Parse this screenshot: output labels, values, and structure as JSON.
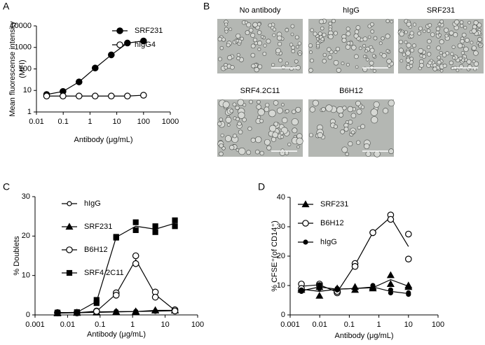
{
  "panel_labels": [
    "A",
    "B",
    "C",
    "D"
  ],
  "micrographs": [
    "No antibody",
    "hIgG",
    "SRF231",
    "SRF4.2C11",
    "B6H12"
  ],
  "chart_data": [
    {
      "type": "line",
      "ylabel": [
        "Mean fluorescense intensity",
        "(MFI)"
      ],
      "xlabel": "Antibody (μg/mL)",
      "x": [
        0.024,
        0.098,
        0.39,
        1.56,
        6.25,
        25,
        100
      ],
      "xlim": [
        0.01,
        1000
      ],
      "xticks": [
        0.01,
        0.1,
        1,
        10,
        100,
        1000
      ],
      "ylim": [
        1,
        10000
      ],
      "yticks": [
        1,
        10,
        100,
        1000,
        10000
      ],
      "xlog": true,
      "ylog": true,
      "series": [
        {
          "name": "SRF231",
          "color": "#000000",
          "marker": "filled-circle",
          "values": [
            6.5,
            9,
            25,
            110,
            450,
            1600,
            2000
          ]
        },
        {
          "name": "hIgG4",
          "color": "#000000",
          "marker": "open-circle",
          "values": [
            5.5,
            5.5,
            5.5,
            5.5,
            5.5,
            5.5,
            6
          ]
        }
      ]
    },
    {
      "type": "line",
      "ylabel": [
        "% Doublets"
      ],
      "xlabel": "Antibody (μg/mL)",
      "x": [
        0.0049,
        0.0195,
        0.078,
        0.3125,
        1.25,
        5,
        20
      ],
      "xlim": [
        0.001,
        100
      ],
      "xticks": [
        0.001,
        0.01,
        0.1,
        1,
        10,
        100
      ],
      "ylim": [
        0,
        30
      ],
      "yticks": [
        0,
        10,
        20,
        30
      ],
      "xlog": true,
      "ylog": false,
      "series": [
        {
          "name": "hIgG",
          "color": "#000000",
          "marker": "small-open-circle",
          "values": [
            0.5,
            0.6,
            0.8,
            0.9,
            0.9,
            1.0,
            1.0
          ],
          "replicate_values": [
            0.6,
            0.5,
            0.7,
            0.8,
            0.8,
            0.9,
            1.1
          ]
        },
        {
          "name": "SRF231",
          "color": "#000000",
          "marker": "triangle",
          "values": [
            0.4,
            0.5,
            0.6,
            0.8,
            0.8,
            1.1,
            1.2
          ],
          "replicate_values": [
            0.5,
            0.6,
            0.7,
            0.7,
            0.9,
            1.2,
            1.1
          ]
        },
        {
          "name": "B6H12",
          "color": "#000000",
          "marker": "open-circle",
          "values": [
            0.5,
            0.6,
            1.0,
            5.6,
            15,
            5.8,
            1.3
          ],
          "replicate_values": [
            0.6,
            0.5,
            0.9,
            5.0,
            13,
            4.5,
            1.0
          ]
        },
        {
          "name": "SRF4.2C11",
          "color": "#000000",
          "marker": "square",
          "values": [
            0.6,
            0.6,
            3.8,
            19.8,
            23.5,
            22.5,
            24
          ],
          "replicate_values": [
            0.5,
            0.7,
            3.0,
            19.6,
            21.5,
            21,
            22.5
          ]
        }
      ]
    },
    {
      "type": "line",
      "ylabel": [
        "% CFSE⁺(of CD14⁺)"
      ],
      "xlabel": "Antibody (μg/mL)",
      "x": [
        0.0024,
        0.0098,
        0.039,
        0.156,
        0.625,
        2.5,
        10
      ],
      "xlim": [
        0.001,
        100
      ],
      "xticks": [
        0.001,
        0.01,
        0.1,
        1,
        10,
        100
      ],
      "ylim": [
        0,
        40
      ],
      "yticks": [
        0,
        10,
        20,
        30,
        40
      ],
      "xlog": true,
      "ylog": false,
      "series": [
        {
          "name": "SRF231",
          "color": "#000000",
          "marker": "triangle",
          "values": [
            8.5,
            6.5,
            8.5,
            8.5,
            9,
            13.5,
            10
          ],
          "replicate_values": [
            9,
            9.5,
            9,
            9.5,
            9.5,
            10.5,
            9.5
          ]
        },
        {
          "name": "B6H12",
          "color": "#000000",
          "marker": "open-circle",
          "values": [
            10.5,
            10.5,
            7.5,
            17.5,
            28,
            34,
            27.5
          ],
          "replicate_values": [
            9,
            10,
            8,
            16.5,
            28,
            32.5,
            19
          ]
        },
        {
          "name": "hIgG",
          "color": "#000000",
          "marker": "small-filled-circle",
          "values": [
            8,
            10,
            9,
            9,
            10,
            8.5,
            7
          ],
          "replicate_values": [
            8.5,
            9,
            8.5,
            9,
            9,
            7.5,
            7.5
          ]
        }
      ]
    }
  ]
}
